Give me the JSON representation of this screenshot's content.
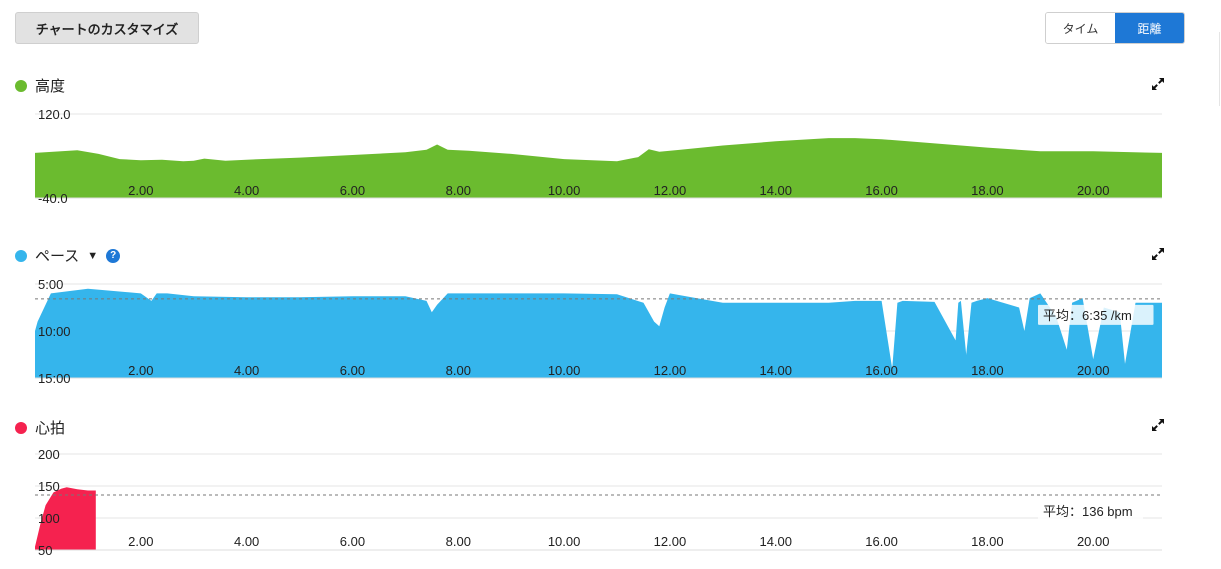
{
  "header": {
    "customize_label": "チャートのカスタマイズ",
    "toggle": {
      "time_label": "タイム",
      "distance_label": "距離",
      "active": "distance"
    }
  },
  "colors": {
    "elevation": "#6bbb2f",
    "pace": "#35b5ec",
    "heart": "#f5224f",
    "accent": "#1e78d6"
  },
  "icons": {
    "expand": "expand-icon",
    "help": "help-icon",
    "dropdown": "triangle-down-icon"
  },
  "panels": {
    "elevation": {
      "title": "高度"
    },
    "pace": {
      "title": "ペース",
      "help": "?",
      "dropdown": "▼",
      "avg_label": "平均：6:35 /km"
    },
    "heart": {
      "title": "心拍",
      "avg_label": "平均：136 bpm"
    }
  },
  "chart_data": [
    {
      "type": "area",
      "title": "高度",
      "x_ticks": [
        "2.00",
        "4.00",
        "6.00",
        "8.00",
        "10.00",
        "12.00",
        "14.00",
        "16.00",
        "18.00",
        "20.00"
      ],
      "y_ticks": [
        "120.0",
        "-40.0"
      ],
      "xlim": [
        0,
        21.3
      ],
      "ylim": [
        -40,
        120
      ],
      "grid": true,
      "series": [
        {
          "x": [
            0,
            0.8,
            1.2,
            1.6,
            2.0,
            2.4,
            2.8,
            3.0,
            3.2,
            3.6,
            4.0,
            5.0,
            6.0,
            7.0,
            7.4,
            7.6,
            7.8,
            8.2,
            9.0,
            10.0,
            11.0,
            11.4,
            11.6,
            11.8,
            12.2,
            13.0,
            14.0,
            15.0,
            15.5,
            16.0,
            17.0,
            18.0,
            19.0,
            20.0,
            21.3
          ],
          "y": [
            46,
            51,
            44,
            34,
            32,
            33,
            30,
            31,
            35,
            31,
            33,
            37,
            42,
            47,
            52,
            62,
            52,
            50,
            44,
            34,
            30,
            38,
            53,
            48,
            52,
            60,
            68,
            74,
            74,
            72,
            64,
            56,
            49,
            49,
            46
          ]
        }
      ]
    },
    {
      "type": "area",
      "title": "ペース",
      "x_ticks": [
        "2.00",
        "4.00",
        "6.00",
        "8.00",
        "10.00",
        "12.00",
        "14.00",
        "16.00",
        "18.00",
        "20.00"
      ],
      "y_ticks": [
        "5:00",
        "10:00",
        "15:00"
      ],
      "xlim": [
        0,
        21.3
      ],
      "ylim": [
        5,
        15
      ],
      "y_inverted": true,
      "avg_line": 6.58,
      "grid": true,
      "series": [
        {
          "x": [
            0,
            0.05,
            0.3,
            1.0,
            2.0,
            2.2,
            2.3,
            2.5,
            3.0,
            4.0,
            5.0,
            6.0,
            7.0,
            7.4,
            7.5,
            7.6,
            7.8,
            8.0,
            9.0,
            10.0,
            11.0,
            11.5,
            11.7,
            11.8,
            11.9,
            12.0,
            12.5,
            13.0,
            14.0,
            15.0,
            15.5,
            16.0,
            16.2,
            16.3,
            16.4,
            17.0,
            17.4,
            17.45,
            17.5,
            17.6,
            17.7,
            17.8,
            18.0,
            18.6,
            18.7,
            18.8,
            19.0,
            19.3,
            19.5,
            19.6,
            19.8,
            20.0,
            20.2,
            20.5,
            20.6,
            20.8,
            21.0,
            21.3
          ],
          "y": [
            10,
            9,
            6.0,
            5.5,
            6.0,
            6.8,
            6.0,
            6.0,
            6.3,
            6.4,
            6.4,
            6.3,
            6.3,
            6.8,
            8.0,
            7.2,
            6.0,
            6.0,
            6.0,
            6.0,
            6.1,
            7.0,
            9.0,
            9.5,
            7.5,
            6.0,
            6.5,
            7.0,
            7.0,
            7.0,
            6.8,
            6.8,
            14.0,
            7.0,
            6.8,
            6.9,
            11.0,
            7.0,
            6.8,
            12.5,
            7.0,
            6.8,
            6.5,
            7.5,
            10.0,
            6.5,
            6.0,
            8.5,
            12.0,
            7.0,
            6.5,
            13.0,
            7.5,
            8.0,
            13.5,
            7.0,
            7.0,
            7.0
          ]
        }
      ]
    },
    {
      "type": "area",
      "title": "心拍",
      "x_ticks": [
        "2.00",
        "4.00",
        "6.00",
        "8.00",
        "10.00",
        "12.00",
        "14.00",
        "16.00",
        "18.00",
        "20.00"
      ],
      "y_ticks": [
        "200",
        "150",
        "100",
        "50"
      ],
      "xlim": [
        0,
        21.3
      ],
      "ylim": [
        50,
        200
      ],
      "avg_line": 136,
      "grid": true,
      "series": [
        {
          "x": [
            0,
            0.1,
            0.2,
            0.35,
            0.5,
            0.6,
            0.8,
            1.0,
            1.15,
            1.15
          ],
          "y": [
            55,
            90,
            120,
            140,
            146,
            148,
            145,
            143,
            143,
            50
          ]
        }
      ]
    }
  ]
}
